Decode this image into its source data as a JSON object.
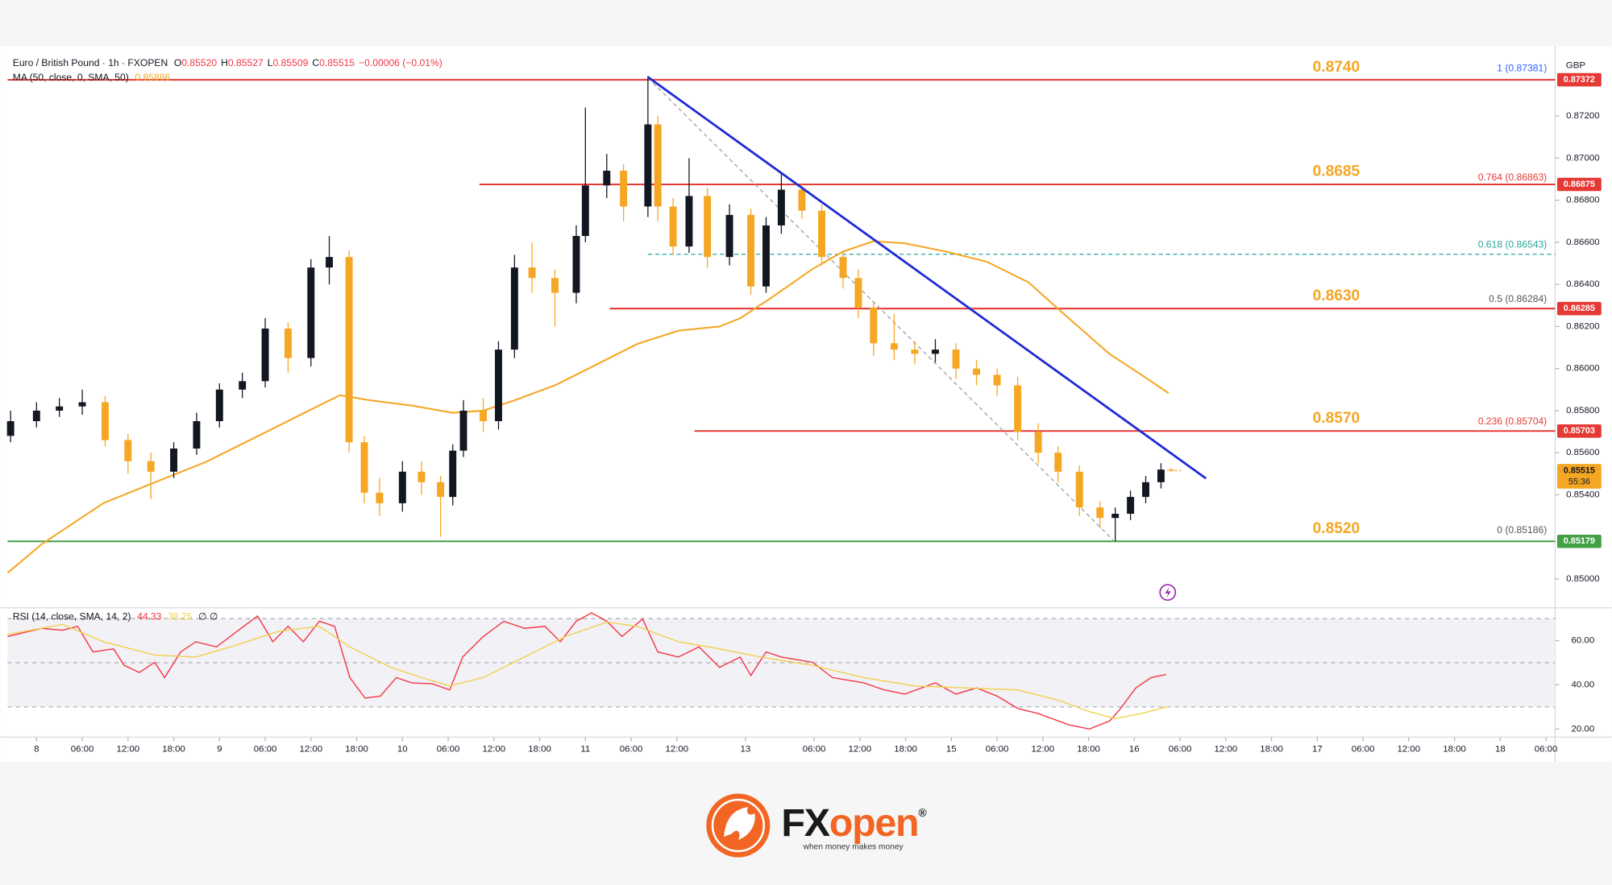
{
  "chart_data": [
    {
      "type": "candlestick",
      "title": "Euro / British Pound · 1h · FXOPEN",
      "header_values": [
        {
          "k": "O",
          "v": "0.85520"
        },
        {
          "k": "H",
          "v": "0.85527"
        },
        {
          "k": "L",
          "v": "0.85509"
        },
        {
          "k": "C",
          "v": "0.85515"
        }
      ],
      "change": "−0.00006 (−0.01%)",
      "currency": "GBP",
      "up_color": "#131722",
      "down_color": "#f5a623",
      "x": [
        -3.4,
        0,
        3,
        6,
        9,
        12,
        15,
        18,
        21,
        24,
        27,
        30,
        33,
        36,
        38.4,
        41,
        43,
        45,
        48,
        50.5,
        53,
        54.6,
        56,
        58.6,
        60.6,
        62.7,
        65,
        68,
        70.8,
        72,
        74.8,
        77,
        80.2,
        81.5,
        83.5,
        85.6,
        88,
        90.9,
        93.7,
        95.7,
        97.7,
        100.4,
        103,
        105.8,
        107.8,
        109.8,
        112.5,
        115.2,
        117.9,
        120.6,
        123.3,
        126,
        128.7,
        131.4,
        134,
        136.8,
        139.5,
        141.5,
        143.5,
        145.5,
        147.5,
        148.8
      ],
      "open": [
        0.8568,
        0.8575,
        0.858,
        0.8582,
        0.8584,
        0.8566,
        0.8556,
        0.8551,
        0.8562,
        0.8575,
        0.859,
        0.8594,
        0.8619,
        0.8605,
        0.8648,
        0.8653,
        0.8565,
        0.8541,
        0.8536,
        0.8551,
        0.8546,
        0.8539,
        0.8561,
        0.858,
        0.8575,
        0.8609,
        0.8648,
        0.8643,
        0.8636,
        0.8663,
        0.8687,
        0.8694,
        0.8677,
        0.8716,
        0.8677,
        0.8658,
        0.8682,
        0.8653,
        0.8673,
        0.8639,
        0.8668,
        0.8685,
        0.8675,
        0.8653,
        0.8643,
        0.8629,
        0.8612,
        0.8609,
        0.8607,
        0.8609,
        0.86,
        0.8597,
        0.8592,
        0.857,
        0.856,
        0.8551,
        0.8534,
        0.8529,
        0.8531,
        0.8539,
        0.8546,
        0.8552
      ],
      "high": [
        0.858,
        0.8584,
        0.8586,
        0.859,
        0.8587,
        0.8569,
        0.856,
        0.8565,
        0.8579,
        0.8593,
        0.8598,
        0.8624,
        0.8622,
        0.8652,
        0.8663,
        0.8656,
        0.8568,
        0.8548,
        0.8556,
        0.8556,
        0.8549,
        0.8564,
        0.8585,
        0.8586,
        0.8613,
        0.8654,
        0.866,
        0.8647,
        0.8668,
        0.8724,
        0.8702,
        0.8697,
        0.8739,
        0.872,
        0.8681,
        0.87,
        0.8686,
        0.8678,
        0.8676,
        0.8672,
        0.8693,
        0.8688,
        0.8678,
        0.8656,
        0.8647,
        0.8632,
        0.8626,
        0.8613,
        0.8614,
        0.8612,
        0.8604,
        0.86,
        0.8596,
        0.8574,
        0.8563,
        0.8554,
        0.8537,
        0.8534,
        0.8542,
        0.8549,
        0.8555,
        0.85527
      ],
      "low": [
        0.8565,
        0.8572,
        0.8577,
        0.8578,
        0.8563,
        0.855,
        0.8538,
        0.8548,
        0.8559,
        0.8572,
        0.8586,
        0.8591,
        0.8598,
        0.8601,
        0.864,
        0.856,
        0.8536,
        0.853,
        0.8532,
        0.854,
        0.852,
        0.8535,
        0.8558,
        0.857,
        0.8571,
        0.8605,
        0.8636,
        0.862,
        0.8631,
        0.866,
        0.8681,
        0.867,
        0.8672,
        0.867,
        0.8654,
        0.8655,
        0.8648,
        0.8649,
        0.8635,
        0.8636,
        0.8664,
        0.8671,
        0.8649,
        0.8638,
        0.8624,
        0.8606,
        0.8604,
        0.8602,
        0.8603,
        0.8595,
        0.8592,
        0.8587,
        0.8566,
        0.8555,
        0.8546,
        0.853,
        0.8524,
        0.8518,
        0.8528,
        0.8536,
        0.8543,
        0.85509
      ],
      "close": [
        0.8575,
        0.858,
        0.8582,
        0.8584,
        0.8566,
        0.8556,
        0.8551,
        0.8562,
        0.8575,
        0.859,
        0.8594,
        0.8619,
        0.8605,
        0.8648,
        0.8653,
        0.8565,
        0.8541,
        0.8536,
        0.8551,
        0.8546,
        0.8539,
        0.8561,
        0.858,
        0.8575,
        0.8609,
        0.8648,
        0.8643,
        0.8636,
        0.8663,
        0.8687,
        0.8694,
        0.8677,
        0.8716,
        0.8677,
        0.8658,
        0.8682,
        0.8653,
        0.8673,
        0.8639,
        0.8668,
        0.8685,
        0.8675,
        0.8653,
        0.8643,
        0.8629,
        0.8612,
        0.8609,
        0.8607,
        0.8609,
        0.86,
        0.8597,
        0.8592,
        0.857,
        0.856,
        0.8551,
        0.8534,
        0.8529,
        0.8531,
        0.8539,
        0.8546,
        0.8552,
        0.85515
      ],
      "series": [
        {
          "name": "MA (50, close, 0, SMA, 50)",
          "color": "#f5a623",
          "x": [
            -3.8,
            0.7,
            8.8,
            15.5,
            22.2,
            30.3,
            35.7,
            39.8,
            43.8,
            49.2,
            54.6,
            58.6,
            62.7,
            68.1,
            73.5,
            78.8,
            84.2,
            89.6,
            92.3,
            96.4,
            101.8,
            105.8,
            109.8,
            113.9,
            119.3,
            124.7,
            130.1,
            135.4,
            140.8,
            144.9,
            148.5
          ],
          "values": [
            0.85029,
            0.85166,
            0.85361,
            0.85459,
            0.85556,
            0.85702,
            0.858,
            0.85873,
            0.85849,
            0.85824,
            0.8579,
            0.858,
            0.85849,
            0.85922,
            0.8602,
            0.86117,
            0.8618,
            0.862,
            0.86239,
            0.86337,
            0.86473,
            0.86556,
            0.86605,
            0.86595,
            0.86556,
            0.86507,
            0.8641,
            0.86239,
            0.86068,
            0.85971,
            0.85883
          ]
        }
      ],
      "legend_value": "0.85886",
      "xlim": [
        -3.8,
        199.2
      ],
      "xticks": [
        {
          "value": 0,
          "label": "8"
        },
        {
          "value": 6,
          "label": "06:00"
        },
        {
          "value": 12,
          "label": "12:00"
        },
        {
          "value": 18,
          "label": "18:00"
        },
        {
          "value": 24,
          "label": "9"
        },
        {
          "value": 30,
          "label": "06:00"
        },
        {
          "value": 36,
          "label": "12:00"
        },
        {
          "value": 42,
          "label": "18:00"
        },
        {
          "value": 48,
          "label": "10"
        },
        {
          "value": 54,
          "label": "06:00"
        },
        {
          "value": 60,
          "label": "12:00"
        },
        {
          "value": 66,
          "label": "18:00"
        },
        {
          "value": 72,
          "label": "11"
        },
        {
          "value": 78,
          "label": "06:00"
        },
        {
          "value": 84,
          "label": "12:00"
        },
        {
          "value": 93,
          "label": "13"
        },
        {
          "value": 102,
          "label": "06:00"
        },
        {
          "value": 108,
          "label": "12:00"
        },
        {
          "value": 114,
          "label": "18:00"
        },
        {
          "value": 120,
          "label": "15"
        },
        {
          "value": 126,
          "label": "06:00"
        },
        {
          "value": 132,
          "label": "12:00"
        },
        {
          "value": 138,
          "label": "18:00"
        },
        {
          "value": 144,
          "label": "16"
        },
        {
          "value": 150,
          "label": "06:00"
        },
        {
          "value": 156,
          "label": "12:00"
        },
        {
          "value": 162,
          "label": "18:00"
        },
        {
          "value": 168,
          "label": "17"
        },
        {
          "value": 174,
          "label": "06:00"
        },
        {
          "value": 180,
          "label": "12:00"
        },
        {
          "value": 186,
          "label": "18:00"
        },
        {
          "value": 192,
          "label": "18"
        },
        {
          "value": 198,
          "label": "06:00"
        }
      ],
      "ylim": [
        0.84873,
        0.87517
      ],
      "yticks": [
        {
          "value": 0.872,
          "label": "0.87200"
        },
        {
          "value": 0.87,
          "label": "0.87000"
        },
        {
          "value": 0.868,
          "label": "0.86800"
        },
        {
          "value": 0.866,
          "label": "0.86600"
        },
        {
          "value": 0.864,
          "label": "0.86400"
        },
        {
          "value": 0.862,
          "label": "0.86200"
        },
        {
          "value": 0.86,
          "label": "0.86000"
        },
        {
          "value": 0.858,
          "label": "0.85800"
        },
        {
          "value": 0.856,
          "label": "0.85600"
        },
        {
          "value": 0.854,
          "label": "0.85400"
        },
        {
          "value": 0.85,
          "label": "0.85000"
        }
      ],
      "grid": false,
      "levels": [
        {
          "label": "0.8740",
          "price": 0.87372,
          "color": "#e53935"
        },
        {
          "label": "0.8685",
          "price": 0.86875,
          "color": "#e53935",
          "from": 58.1
        },
        {
          "label": "0.8630",
          "price": 0.86285,
          "color": "#e53935",
          "from": 75.2
        },
        {
          "label": "0.8570",
          "price": 0.85703,
          "color": "#e53935",
          "from": 86.3
        },
        {
          "label": "0.8520",
          "price": 0.85179,
          "color": "#43a047"
        }
      ],
      "level_label_color": "#f5a623",
      "trendline": {
        "x": [
          80.2,
          153.4
        ],
        "y": [
          0.87385,
          0.85478
        ],
        "color": "#1f2bd6"
      },
      "fib": {
        "x": [
          80.2,
          141.2
        ],
        "y": [
          0.87381,
          0.85186
        ],
        "levels": [
          {
            "label": "1 (0.87381)",
            "price": 0.87381,
            "color": "#2962ff"
          },
          {
            "label": "0.764 (0.86863)",
            "price": 0.86863,
            "color": "#e53935"
          },
          {
            "label": "0.618 (0.86543)",
            "price": 0.86543,
            "color": "#26a69a",
            "line": true
          },
          {
            "label": "0.5 (0.86284)",
            "price": 0.86284,
            "color": "#555555"
          },
          {
            "label": "0.236 (0.85704)",
            "price": 0.85704,
            "color": "#e53935"
          },
          {
            "label": "0 (0.85186)",
            "price": 0.85186,
            "color": "#555555"
          }
        ]
      },
      "last_price": 0.85515,
      "countdown": "55:36"
    },
    {
      "type": "line",
      "series": [
        {
          "name": "RSI (14, close, SMA, 14, 2)",
          "color": "#f23645",
          "x": [
            -3.8,
            0.7,
            3.4,
            5.4,
            7.4,
            10.1,
            11.5,
            13.5,
            15.5,
            16.8,
            18.9,
            20.9,
            23.6,
            26.3,
            29.0,
            31.0,
            33.0,
            35.0,
            37.1,
            39.1,
            41.1,
            43.1,
            45.1,
            47.2,
            49.2,
            51.9,
            54.2,
            55.9,
            58.6,
            61.3,
            64.0,
            66.7,
            68.7,
            70.8,
            72.8,
            74.8,
            76.8,
            79.5,
            81.5,
            84.2,
            86.9,
            89.6,
            92.3,
            93.7,
            95.7,
            97.7,
            101.8,
            104.4,
            108.5,
            111.2,
            113.9,
            117.9,
            120.6,
            123.3,
            126.0,
            128.7,
            131.4,
            135.4,
            138.1,
            140.8,
            142.2,
            144.2,
            146.2,
            148.2
          ],
          "values": [
            61.9,
            65.6,
            64.7,
            66.5,
            54.9,
            56.3,
            48.8,
            45.6,
            50.2,
            43.3,
            54.9,
            59.5,
            57.2,
            64.2,
            71.2,
            59.5,
            66.5,
            59.5,
            68.8,
            66.5,
            43.3,
            34.0,
            34.9,
            43.3,
            40.9,
            40.5,
            37.7,
            52.6,
            61.9,
            68.8,
            65.6,
            66.5,
            59.5,
            68.8,
            72.6,
            68.8,
            61.9,
            69.8,
            54.9,
            52.6,
            57.2,
            47.9,
            52.6,
            44.2,
            54.9,
            52.6,
            50.2,
            43.3,
            40.9,
            37.7,
            35.8,
            40.9,
            35.8,
            38.6,
            34.9,
            29.3,
            27.0,
            21.9,
            20.0,
            23.7,
            29.3,
            38.6,
            43.3,
            44.7
          ]
        },
        {
          "color": "#f2d04b",
          "x": [
            -3.8,
            3.4,
            8.8,
            15.5,
            20.9,
            26.3,
            31.7,
            37.1,
            41.1,
            46.5,
            50.5,
            54.2,
            58.6,
            64.0,
            69.4,
            74.8,
            78.8,
            84.2,
            89.6,
            95.0,
            101.8,
            108.5,
            115.2,
            122.0,
            128.7,
            134.1,
            138.1,
            141.5,
            144.9,
            148.5
          ],
          "values": [
            62.8,
            67.4,
            59.5,
            53.5,
            52.6,
            58.1,
            64.2,
            66.5,
            57.2,
            47.9,
            43.3,
            39.5,
            43.3,
            52.6,
            61.9,
            68.4,
            66.5,
            59.5,
            56.3,
            52.6,
            48.8,
            43.3,
            39.5,
            38.6,
            37.7,
            33.0,
            27.9,
            24.7,
            27.0,
            30.2
          ]
        }
      ],
      "legend_values": [
        "44.33",
        "38.25",
        "∅  ∅"
      ],
      "ylim": [
        17.7,
        73.5
      ],
      "yticks": [
        {
          "value": 60,
          "label": "60.00"
        },
        {
          "value": 40,
          "label": "40.00"
        },
        {
          "value": 20,
          "label": "20.00"
        }
      ],
      "band": [
        30,
        70
      ],
      "guides": [
        70,
        50,
        30
      ]
    }
  ],
  "brand": {
    "name_a": "FX",
    "name_b": "open",
    "mark": "®",
    "tagline": "when money makes money"
  }
}
